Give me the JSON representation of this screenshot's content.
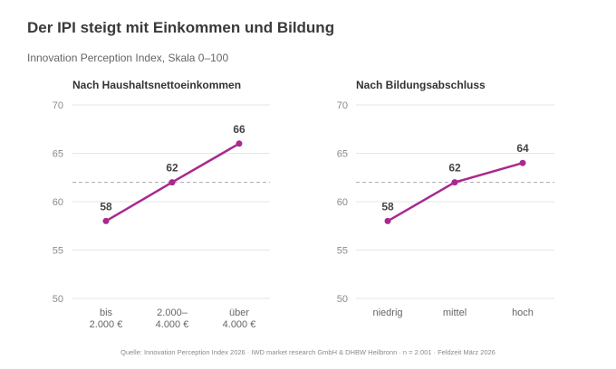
{
  "title": "Der IPI steigt mit Einkommen und Bildung",
  "subtitle": "Innovation Perception Index, Skala 0–100",
  "footer": "Quelle: Innovation Perception Index 2026 · IWD market research GmbH & DHBW Heilbronn · n = 2.001 · Feldzeit März 2026",
  "colors": {
    "series": "#a8298f",
    "grid": "#e6e6e6",
    "reference": "#aaaaaa"
  },
  "chart_data": [
    {
      "type": "line",
      "title": "Nach Haushaltsnettoeinkommen",
      "categories": [
        "bis\n2.000 €",
        "2.000–\n4.000 €",
        "über\n4.000 €"
      ],
      "values": [
        58,
        62,
        66
      ],
      "data_labels": [
        "58",
        "62",
        "66"
      ],
      "ylim": [
        50,
        70
      ],
      "yticks": [
        50,
        55,
        60,
        65,
        70
      ],
      "reference_line": 62,
      "grid": true
    },
    {
      "type": "line",
      "title": "Nach Bildungsabschluss",
      "categories": [
        "niedrig",
        "mittel",
        "hoch"
      ],
      "values": [
        58,
        62,
        64
      ],
      "data_labels": [
        "58",
        "62",
        "64"
      ],
      "ylim": [
        50,
        70
      ],
      "yticks": [
        50,
        55,
        60,
        65,
        70
      ],
      "reference_line": 62,
      "grid": true
    }
  ]
}
